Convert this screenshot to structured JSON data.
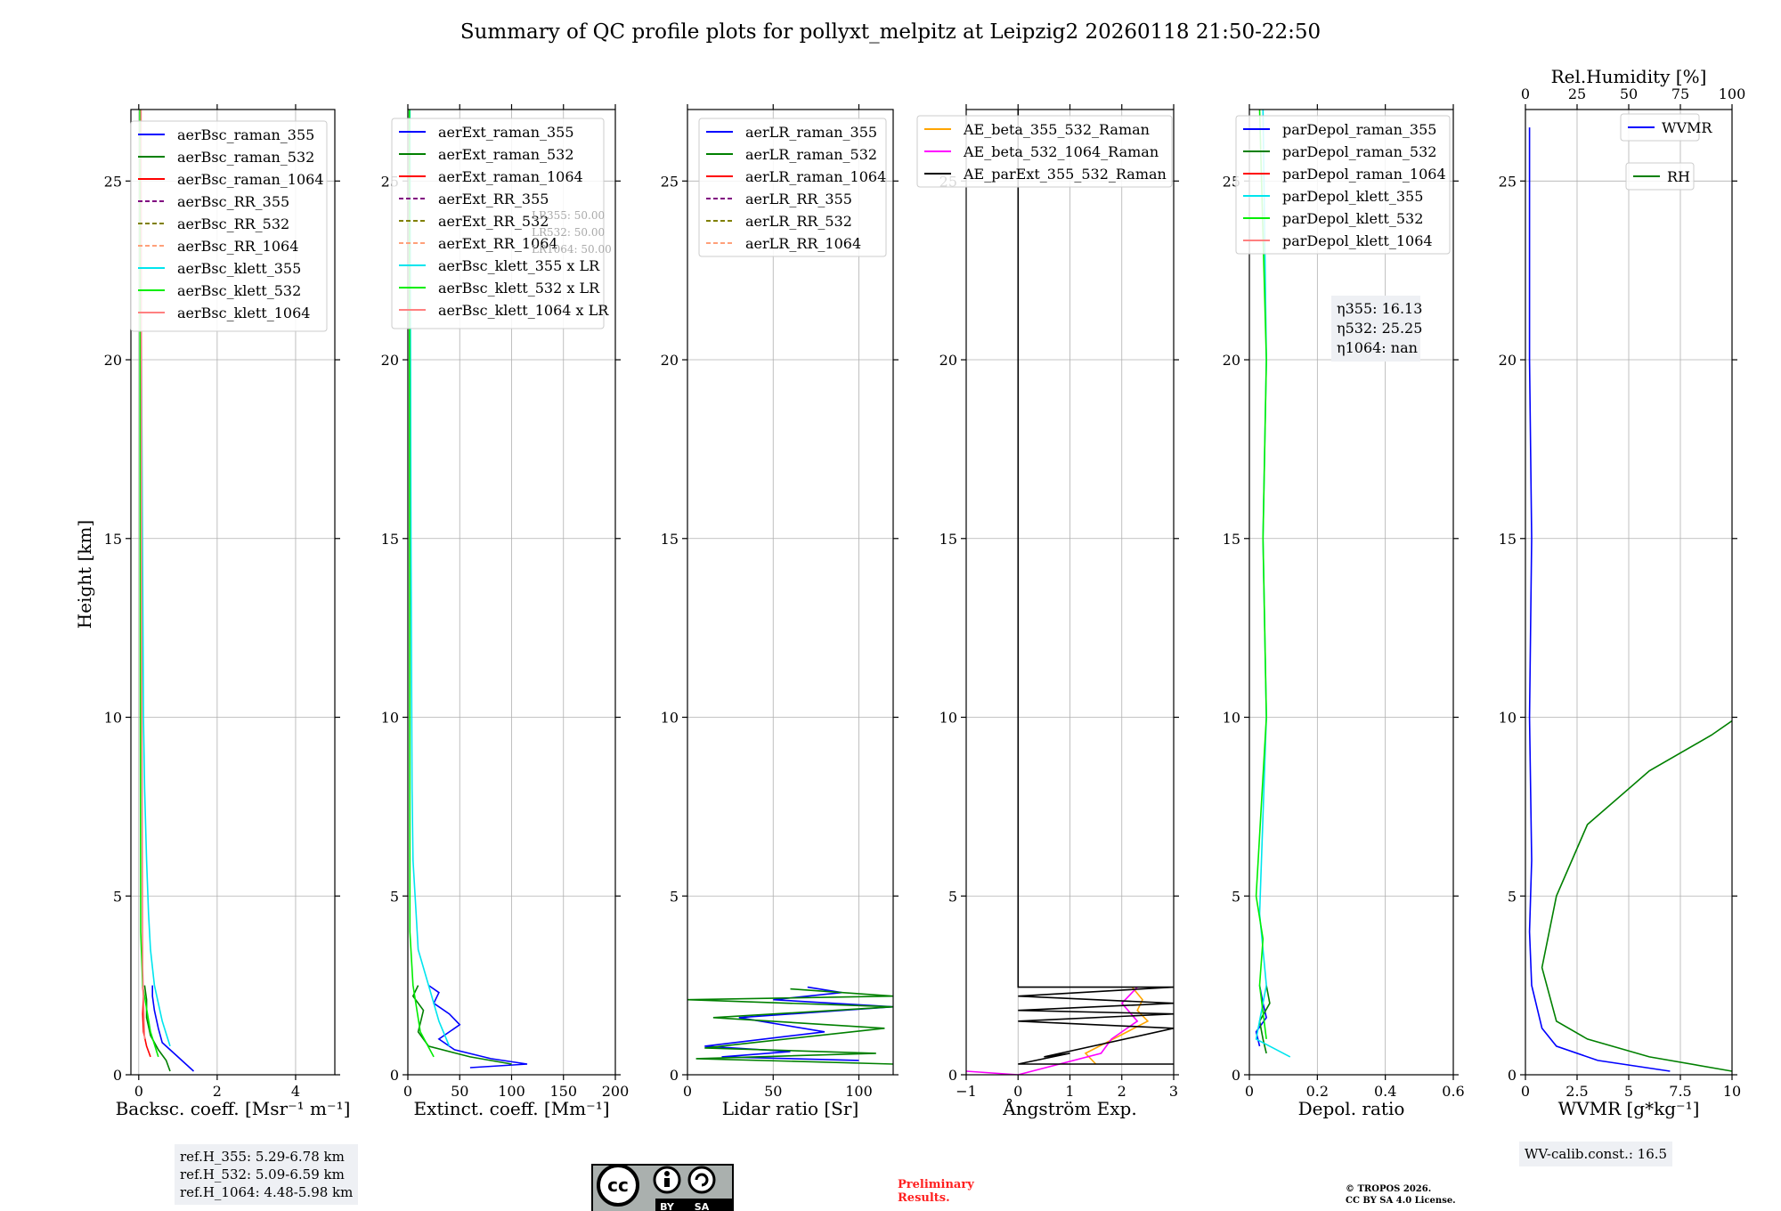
{
  "title": "Summary of QC profile plots for pollyxt_melpitz at Leipzig2 20260118 21:50-22:50",
  "ylabel": "Height [km]",
  "chart_data": [
    {
      "type": "line",
      "xlabel": "Backsc. coeff. [Msr⁻¹ m⁻¹]",
      "ylabel": "Height [km]",
      "xlim": [
        -0.2,
        5.0
      ],
      "ylim": [
        0,
        27
      ],
      "xticks": [
        0,
        2,
        4
      ],
      "yticks": [
        0,
        5,
        10,
        15,
        20,
        25
      ],
      "legend": [
        "aerBsc_raman_355",
        "aerBsc_raman_532",
        "aerBsc_raman_1064",
        "aerBsc_RR_355",
        "aerBsc_RR_532",
        "aerBsc_RR_1064",
        "aerBsc_klett_355",
        "aerBsc_klett_532",
        "aerBsc_klett_1064"
      ],
      "series": [
        {
          "name": "aerBsc_raman_355",
          "color": "#0000ff",
          "x": [
            1.4,
            1.2,
            0.9,
            0.6,
            0.5,
            0.4,
            0.35,
            0.35
          ],
          "y": [
            0.1,
            0.3,
            0.6,
            0.9,
            1.3,
            1.8,
            2.2,
            2.5
          ]
        },
        {
          "name": "aerBsc_raman_532",
          "color": "#008000",
          "x": [
            0.8,
            0.7,
            0.5,
            0.3,
            0.2,
            0.2,
            0.15
          ],
          "y": [
            0.1,
            0.4,
            0.7,
            1.1,
            1.6,
            2.1,
            2.5
          ]
        },
        {
          "name": "aerBsc_raman_1064",
          "color": "#ff0000",
          "x": [
            0.3,
            0.2,
            0.12,
            0.1,
            0.12,
            0.1
          ],
          "y": [
            0.5,
            0.8,
            1.2,
            1.7,
            2.2,
            2.5
          ]
        },
        {
          "name": "aerBsc_klett_355",
          "color": "#00e5ee",
          "x": [
            0.8,
            0.6,
            0.4,
            0.3,
            0.25,
            0.2,
            0.15,
            0.12,
            0.1,
            0.08,
            0.06,
            0.05
          ],
          "y": [
            0.8,
            1.5,
            2.5,
            3.5,
            4.5,
            6,
            8,
            10,
            14,
            18,
            22,
            27
          ]
        },
        {
          "name": "aerBsc_klett_532",
          "color": "#00ee00",
          "x": [
            0.5,
            0.3,
            0.1,
            0.05,
            0.04,
            0.03
          ],
          "y": [
            0.5,
            1.2,
            2.5,
            4,
            10,
            27
          ]
        },
        {
          "name": "aerBsc_klett_1064",
          "color": "#ff8080",
          "x": [
            0.15,
            0.1,
            0.08,
            0.06
          ],
          "y": [
            1,
            3,
            10,
            27
          ]
        }
      ]
    },
    {
      "type": "line",
      "xlabel": "Extinct. coeff. [Mm⁻¹]",
      "ylabel": "",
      "xlim": [
        0,
        200
      ],
      "ylim": [
        0,
        27
      ],
      "xticks": [
        0,
        50,
        100,
        150,
        200
      ],
      "yticks": [
        0,
        5,
        10,
        15,
        20,
        25
      ],
      "legend": [
        "aerExt_raman_355",
        "aerExt_raman_532",
        "aerExt_raman_1064",
        "aerExt_RR_355",
        "aerExt_RR_532",
        "aerExt_RR_1064",
        "aerBsc_klett_355 x LR",
        "aerBsc_klett_532 x LR",
        "aerBsc_klett_1064 x LR"
      ],
      "annotation": [
        "LR355: 50.00",
        "LR532: 50.00",
        "LR1064: 50.00"
      ],
      "series": [
        {
          "name": "aerExt_raman_355",
          "color": "#0000ff",
          "x": [
            60,
            115,
            80,
            45,
            30,
            50,
            40,
            25,
            30,
            20
          ],
          "y": [
            0.2,
            0.3,
            0.45,
            0.7,
            1.0,
            1.4,
            1.7,
            2.0,
            2.3,
            2.5
          ]
        },
        {
          "name": "aerExt_raman_532",
          "color": "#008000",
          "x": [
            100,
            60,
            20,
            10,
            15,
            5,
            10
          ],
          "y": [
            0.3,
            0.5,
            0.8,
            1.2,
            1.8,
            2.2,
            2.5
          ]
        },
        {
          "name": "aerBsc_klett_355 x LR",
          "color": "#00e5ee",
          "x": [
            40,
            30,
            20,
            10,
            8,
            5,
            4,
            3,
            2
          ],
          "y": [
            0.8,
            1.5,
            2.5,
            3.5,
            4.5,
            6,
            8,
            15,
            27
          ]
        },
        {
          "name": "aerBsc_klett_532 x LR",
          "color": "#00ee00",
          "x": [
            25,
            12,
            5,
            2,
            1.5
          ],
          "y": [
            0.5,
            1.2,
            2.5,
            4,
            27
          ]
        }
      ]
    },
    {
      "type": "line",
      "xlabel": "Lidar ratio [Sr]",
      "ylabel": "",
      "xlim": [
        0,
        120
      ],
      "ylim": [
        0,
        27
      ],
      "xticks": [
        0,
        50,
        100
      ],
      "yticks": [
        0,
        5,
        10,
        15,
        20,
        25
      ],
      "legend": [
        "aerLR_raman_355",
        "aerLR_raman_532",
        "aerLR_raman_1064",
        "aerLR_RR_355",
        "aerLR_RR_532",
        "aerLR_RR_1064"
      ],
      "series": [
        {
          "name": "aerLR_raman_355",
          "color": "#0000ff",
          "x": [
            100,
            20,
            60,
            10,
            80,
            30,
            120,
            50,
            90,
            70
          ],
          "y": [
            0.4,
            0.5,
            0.65,
            0.8,
            1.2,
            1.6,
            1.9,
            2.1,
            2.3,
            2.45
          ]
        },
        {
          "name": "aerLR_raman_532",
          "color": "#008000",
          "x": [
            120,
            5,
            110,
            10,
            115,
            15,
            120,
            0,
            120,
            60
          ],
          "y": [
            0.3,
            0.45,
            0.6,
            0.75,
            1.3,
            1.6,
            1.9,
            2.1,
            2.2,
            2.4
          ]
        }
      ]
    },
    {
      "type": "line",
      "xlabel": "Ångström Exp.",
      "ylabel": "",
      "xlim": [
        -1,
        3
      ],
      "ylim": [
        0,
        27
      ],
      "xticks": [
        -1,
        0,
        1,
        2,
        3
      ],
      "yticks": [
        0,
        5,
        10,
        15,
        20,
        25
      ],
      "legend": [
        "AE_beta_355_532_Raman",
        "AE_beta_532_1064_Raman",
        "AE_parExt_355_532_Raman"
      ],
      "series": [
        {
          "name": "AE_beta_355_532_Raman",
          "color": "#ffa500",
          "x": [
            1.5,
            1.3,
            1.7,
            2.5,
            2.3,
            2.4,
            2.2
          ],
          "y": [
            0.3,
            0.6,
            0.9,
            1.5,
            1.8,
            2.1,
            2.45
          ]
        },
        {
          "name": "AE_beta_532_1064_Raman",
          "color": "#ff00ff",
          "x": [
            -1,
            0,
            1.6,
            1.8,
            2.3,
            2.0,
            2.3
          ],
          "y": [
            0.1,
            0,
            0.6,
            1.0,
            1.5,
            2.0,
            2.45
          ]
        },
        {
          "name": "AE_parExt_355_532_Raman",
          "color": "#000000",
          "x": [
            3,
            0,
            1.0,
            0.5,
            3,
            0,
            3,
            0,
            3,
            0,
            3,
            0,
            0
          ],
          "y": [
            0.3,
            0.3,
            0.6,
            0.5,
            1.3,
            1.5,
            1.7,
            1.8,
            2.0,
            2.2,
            2.45,
            2.45,
            27
          ]
        }
      ]
    },
    {
      "type": "line",
      "xlabel": "Depol. ratio",
      "ylabel": "",
      "xlim": [
        0,
        0.6
      ],
      "ylim": [
        0,
        27
      ],
      "xticks": [
        0.0,
        0.2,
        0.4,
        0.6
      ],
      "yticks": [
        0,
        5,
        10,
        15,
        20,
        25
      ],
      "legend": [
        "parDepol_raman_355",
        "parDepol_raman_532",
        "parDepol_raman_1064",
        "parDepol_klett_355",
        "parDepol_klett_532",
        "parDepol_klett_1064"
      ],
      "annotation": [
        "η355: 16.13",
        "η532: 25.25",
        "η1064: nan"
      ],
      "series": [
        {
          "name": "parDepol_raman_355",
          "color": "#0000ff",
          "x": [
            0.03,
            0.02,
            0.05,
            0.04,
            0.03
          ],
          "y": [
            0.8,
            1.2,
            1.6,
            2.0,
            2.5
          ]
        },
        {
          "name": "parDepol_raman_532",
          "color": "#008000",
          "x": [
            0.05,
            0.04,
            0.03,
            0.06,
            0.05
          ],
          "y": [
            0.6,
            1.0,
            1.5,
            2.0,
            2.5
          ]
        },
        {
          "name": "parDepol_klett_355",
          "color": "#00e5ee",
          "x": [
            0.12,
            0.02,
            0.05,
            0.03,
            0.05,
            0.04,
            0.05,
            0.04
          ],
          "y": [
            0.5,
            1.0,
            2.5,
            4.5,
            10,
            15,
            20,
            27
          ]
        },
        {
          "name": "parDepol_klett_532",
          "color": "#00ee00",
          "x": [
            0.05,
            0.03,
            0.04,
            0.02,
            0.05,
            0.04,
            0.05,
            0.03
          ],
          "y": [
            1.0,
            2.5,
            3.8,
            5,
            10,
            15,
            20,
            27
          ]
        }
      ]
    },
    {
      "type": "line",
      "xlabel": "WVMR [g*kg⁻¹]",
      "ylabel": "",
      "x2label": "Rel.Humidity [%]",
      "xlim": [
        0,
        10
      ],
      "x2lim": [
        0,
        100
      ],
      "ylim": [
        0,
        27
      ],
      "xticks": [
        0.0,
        2.5,
        5.0,
        7.5,
        10.0
      ],
      "x2ticks": [
        0,
        25,
        50,
        75,
        100
      ],
      "yticks": [
        0,
        5,
        10,
        15,
        20,
        25
      ],
      "legend": [
        "WVMR",
        "RH"
      ],
      "annotation": [
        "WV-calib.const.: 16.5"
      ],
      "series": [
        {
          "name": "WVMR",
          "color": "#0000ff",
          "x": [
            7,
            3.5,
            1.5,
            0.8,
            0.3,
            0.2,
            0.3,
            0.2,
            0.3,
            0.2,
            0.2
          ],
          "y": [
            0.1,
            0.4,
            0.8,
            1.3,
            2.5,
            4,
            6,
            10,
            15,
            20,
            26.5
          ]
        },
        {
          "name": "RH",
          "axis": "x2",
          "color": "#008000",
          "x": [
            100,
            60,
            30,
            15,
            8,
            15,
            30,
            60,
            90,
            100
          ],
          "y": [
            0.1,
            0.5,
            1.0,
            1.5,
            3,
            5,
            7,
            8.5,
            9.5,
            9.9
          ]
        }
      ]
    }
  ],
  "ref_box": [
    "ref.H_355: 5.29-6.78 km",
    "ref.H_532: 5.09-6.59 km",
    "ref.H_1064: 4.48-5.98 km"
  ],
  "license_badge": [
    "cc",
    "BY",
    "SA"
  ],
  "preliminary": [
    "Preliminary",
    "Results."
  ],
  "copyright": [
    "© TROPOS 2026.",
    "CC BY SA 4.0 License."
  ],
  "dashed_series": [
    "aerBsc_RR_355",
    "aerBsc_RR_532",
    "aerBsc_RR_1064",
    "aerExt_RR_355",
    "aerExt_RR_532",
    "aerExt_RR_1064",
    "aerLR_RR_355",
    "aerLR_RR_532",
    "aerLR_RR_1064"
  ],
  "legend_colors": {
    "aerBsc_raman_355": "#0000ff",
    "aerBsc_raman_532": "#008000",
    "aerBsc_raman_1064": "#ff0000",
    "aerBsc_RR_355": "#800080",
    "aerBsc_RR_532": "#808000",
    "aerBsc_RR_1064": "#ffa07a",
    "aerBsc_klett_355": "#00e5ee",
    "aerBsc_klett_532": "#00ee00",
    "aerBsc_klett_1064": "#ff8080",
    "aerExt_raman_355": "#0000ff",
    "aerExt_raman_532": "#008000",
    "aerExt_raman_1064": "#ff0000",
    "aerExt_RR_355": "#800080",
    "aerExt_RR_532": "#808000",
    "aerExt_RR_1064": "#ffa07a",
    "aerBsc_klett_355 x LR": "#00e5ee",
    "aerBsc_klett_532 x LR": "#00ee00",
    "aerBsc_klett_1064 x LR": "#ff8080",
    "aerLR_raman_355": "#0000ff",
    "aerLR_raman_532": "#008000",
    "aerLR_raman_1064": "#ff0000",
    "aerLR_RR_355": "#800080",
    "aerLR_RR_532": "#808000",
    "aerLR_RR_1064": "#ffa07a",
    "AE_beta_355_532_Raman": "#ffa500",
    "AE_beta_532_1064_Raman": "#ff00ff",
    "AE_parExt_355_532_Raman": "#000000",
    "parDepol_raman_355": "#0000ff",
    "parDepol_raman_532": "#008000",
    "parDepol_raman_1064": "#ff0000",
    "parDepol_klett_355": "#00e5ee",
    "parDepol_klett_532": "#00ee00",
    "parDepol_klett_1064": "#ff8080",
    "WVMR": "#0000ff",
    "RH": "#008000"
  }
}
